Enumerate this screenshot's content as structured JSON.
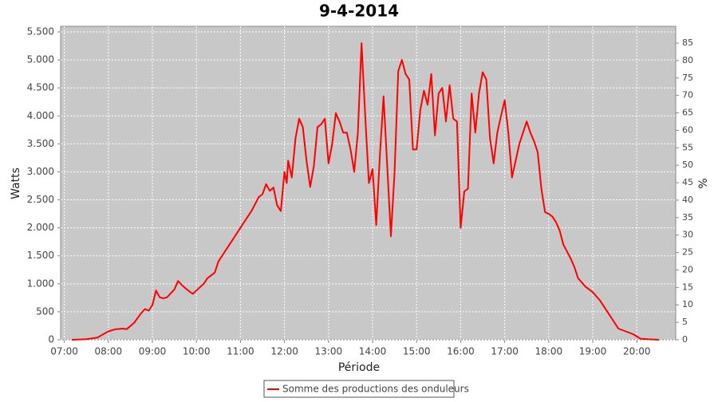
{
  "chart_data": {
    "type": "line",
    "title": "9-4-2014",
    "x_label": "Période",
    "y_label": "Watts",
    "y2_label": "%",
    "grid": true,
    "legend": "bottom",
    "xlim": [
      "06:55",
      "20:53"
    ],
    "xticks": [
      "07:00",
      "08:00",
      "09:00",
      "10:00",
      "11:00",
      "12:00",
      "13:00",
      "14:00",
      "15:00",
      "16:00",
      "17:00",
      "18:00",
      "19:00",
      "20:00"
    ],
    "ylim": [
      0,
      5600
    ],
    "yticks": [
      0,
      500,
      {
        "value": 1000,
        "label": "1.000"
      },
      {
        "value": 1500,
        "label": "1.500"
      },
      {
        "value": 2000,
        "label": "2.000"
      },
      {
        "value": 2500,
        "label": "2.500"
      },
      {
        "value": 3000,
        "label": "3.000"
      },
      {
        "value": 3500,
        "label": "3.500"
      },
      {
        "value": 4000,
        "label": "4.000"
      },
      {
        "value": 4500,
        "label": "4.500"
      },
      {
        "value": 5000,
        "label": "5.000"
      },
      {
        "value": 5500,
        "label": "5.500"
      }
    ],
    "y2lim": [
      0,
      89.8
    ],
    "y2ticks": [
      0,
      5,
      10,
      15,
      20,
      25,
      30,
      35,
      40,
      45,
      50,
      55,
      60,
      65,
      70,
      75,
      80,
      85
    ],
    "x": [
      "07:10",
      "07:30",
      "07:45",
      "08:00",
      "08:10",
      "08:20",
      "08:25",
      "08:35",
      "08:45",
      "08:50",
      "08:55",
      "09:00",
      "09:05",
      "09:10",
      "09:15",
      "09:20",
      "09:30",
      "09:35",
      "09:40",
      "09:45",
      "09:55",
      "10:00",
      "10:10",
      "10:15",
      "10:25",
      "10:30",
      "10:40",
      "10:50",
      "11:00",
      "11:10",
      "11:15",
      "11:25",
      "11:30",
      "11:35",
      "11:40",
      "11:45",
      "11:50",
      "11:55",
      "12:00",
      "12:03",
      "12:05",
      "12:10",
      "12:15",
      "12:20",
      "12:25",
      "12:30",
      "12:35",
      "12:40",
      "12:45",
      "12:50",
      "12:55",
      "13:00",
      "13:05",
      "13:10",
      "13:15",
      "13:20",
      "13:25",
      "13:30",
      "13:35",
      "13:40",
      "13:45",
      "13:50",
      "13:55",
      "14:00",
      "14:05",
      "14:10",
      "14:15",
      "14:20",
      "14:25",
      "14:30",
      "14:35",
      "14:40",
      "14:45",
      "14:50",
      "14:55",
      "15:00",
      "15:05",
      "15:10",
      "15:15",
      "15:20",
      "15:25",
      "15:30",
      "15:35",
      "15:40",
      "15:45",
      "15:50",
      "15:55",
      "16:00",
      "16:05",
      "16:10",
      "16:15",
      "16:20",
      "16:25",
      "16:30",
      "16:35",
      "16:40",
      "16:45",
      "16:50",
      "16:55",
      "17:00",
      "17:05",
      "17:10",
      "17:15",
      "17:20",
      "17:25",
      "17:30",
      "17:35",
      "17:40",
      "17:45",
      "17:50",
      "17:55",
      "18:00",
      "18:05",
      "18:10",
      "18:15",
      "18:20",
      "18:30",
      "18:35",
      "18:40",
      "18:50",
      "19:00",
      "19:10",
      "19:20",
      "19:30",
      "19:35",
      "19:45",
      "19:55",
      "20:05",
      "20:15",
      "20:30"
    ],
    "series": [
      {
        "name": "Somme des productions des onduleurs",
        "color": "#ff0000",
        "values": [
          0,
          10,
          40,
          150,
          190,
          200,
          190,
          300,
          480,
          550,
          520,
          620,
          880,
          760,
          740,
          760,
          900,
          1050,
          980,
          920,
          820,
          880,
          1000,
          1100,
          1200,
          1400,
          1600,
          1800,
          2000,
          2200,
          2300,
          2550,
          2600,
          2780,
          2660,
          2720,
          2400,
          2300,
          3000,
          2800,
          3200,
          2900,
          3600,
          3950,
          3800,
          3200,
          2730,
          3100,
          3800,
          3850,
          3950,
          3150,
          3500,
          4050,
          3900,
          3700,
          3700,
          3400,
          3000,
          3700,
          5300,
          4000,
          2800,
          3050,
          2050,
          3300,
          4350,
          3100,
          1850,
          3000,
          4800,
          5000,
          4750,
          4650,
          3400,
          3400,
          4100,
          4450,
          4200,
          4750,
          3650,
          4400,
          4500,
          3900,
          4550,
          3950,
          3900,
          2000,
          2650,
          2700,
          4400,
          3700,
          4400,
          4780,
          4650,
          3600,
          3150,
          3700,
          4000,
          4280,
          3700,
          2900,
          3200,
          3500,
          3700,
          3900,
          3700,
          3550,
          3350,
          2700,
          2280,
          2250,
          2200,
          2100,
          1950,
          1700,
          1450,
          1300,
          1100,
          950,
          850,
          700,
          500,
          300,
          200,
          150,
          100,
          20,
          10,
          0
        ]
      }
    ]
  }
}
